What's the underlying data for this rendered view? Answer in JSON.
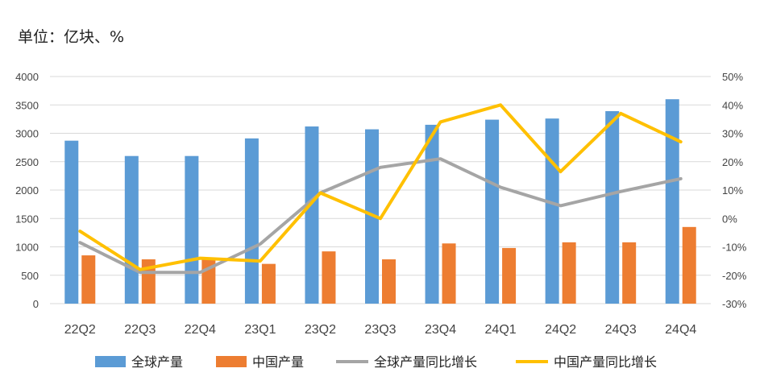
{
  "unit_label": "单位：亿块、%",
  "chart_data": {
    "type": "bar+line",
    "categories": [
      "22Q2",
      "22Q3",
      "22Q4",
      "23Q1",
      "23Q2",
      "23Q3",
      "23Q4",
      "24Q1",
      "24Q2",
      "24Q3",
      "24Q4"
    ],
    "left_axis": {
      "ylim": [
        0,
        4000
      ],
      "ticks": [
        "0",
        "500",
        "1000",
        "1500",
        "2000",
        "2500",
        "3000",
        "3500",
        "4000"
      ]
    },
    "right_axis": {
      "ylim": [
        -30,
        50
      ],
      "ticks": [
        "-30%",
        "-20%",
        "-10%",
        "0%",
        "10%",
        "20%",
        "30%",
        "40%",
        "50%"
      ]
    },
    "grid": true,
    "legend_position": "bottom",
    "series": [
      {
        "name": "全球产量",
        "kind": "bar",
        "axis": "left",
        "color": "#5b9bd5",
        "values": [
          2870,
          2600,
          2600,
          2910,
          3120,
          3070,
          3150,
          3240,
          3260,
          3390,
          3600
        ]
      },
      {
        "name": "中国产量",
        "kind": "bar",
        "axis": "left",
        "color": "#ed7d31",
        "values": [
          850,
          780,
          790,
          700,
          920,
          780,
          1060,
          980,
          1080,
          1080,
          1350
        ]
      },
      {
        "name": "全球产量同比增长",
        "kind": "line",
        "axis": "right",
        "color": "#a5a5a5",
        "values": [
          -8.5,
          -19,
          -19,
          -9,
          9,
          18,
          21,
          11,
          4.5,
          9.5,
          14
        ]
      },
      {
        "name": "中国产量同比增长",
        "kind": "line",
        "axis": "right",
        "color": "#ffc000",
        "values": [
          -4.5,
          -18,
          -14,
          -15,
          9,
          0,
          34,
          40,
          16.5,
          37,
          27
        ]
      }
    ]
  }
}
